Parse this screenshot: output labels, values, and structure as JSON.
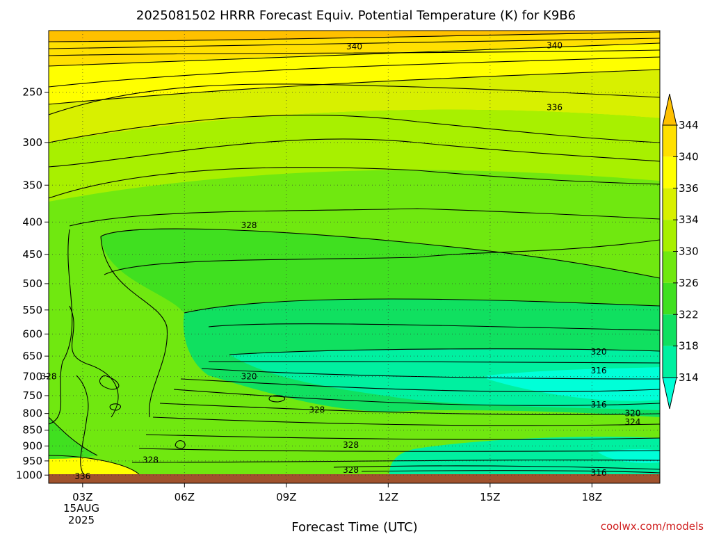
{
  "title": "2025081502 HRRR Forecast Equiv. Potential Temperature (K) for K9B6",
  "credit": "coolwx.com/models",
  "colors": {
    "ground": "#a0522d",
    "scale": [
      "#00ffd8",
      "#00f0a0",
      "#10e060",
      "#40e020",
      "#70e810",
      "#a8f000",
      "#d8f000",
      "#ffff00",
      "#ffe000",
      "#ffc000"
    ],
    "contour_line": "#000000",
    "credit_text": "#d02020"
  },
  "chart_data": {
    "type": "heatmap",
    "xlabel": "Forecast Time (UTC)",
    "ylabel": "",
    "x_range_hours": [
      2,
      20
    ],
    "x_ticks": [
      {
        "hour": 3,
        "label": "03Z"
      },
      {
        "hour": 6,
        "label": "06Z"
      },
      {
        "hour": 9,
        "label": "09Z"
      },
      {
        "hour": 12,
        "label": "12Z"
      },
      {
        "hour": 15,
        "label": "15Z"
      },
      {
        "hour": 18,
        "label": "18Z"
      }
    ],
    "date_label": [
      "15AUG",
      "2025"
    ],
    "y_scale": "log-pressure",
    "y_range_hpa": [
      1030,
      200
    ],
    "y_ticks": [
      250,
      300,
      350,
      400,
      450,
      500,
      550,
      600,
      650,
      700,
      750,
      800,
      850,
      900,
      950,
      1000
    ],
    "colorbar": {
      "levels": [
        344,
        340,
        336,
        334,
        330,
        326,
        322,
        318,
        314
      ],
      "extend": "both"
    },
    "contour_labels": [
      {
        "hour": 11.0,
        "p": 212,
        "label": "340"
      },
      {
        "hour": 16.9,
        "p": 211,
        "label": "340"
      },
      {
        "hour": 16.9,
        "p": 264,
        "label": "336"
      },
      {
        "hour": 7.9,
        "p": 405,
        "label": "328"
      },
      {
        "hour": 18.2,
        "p": 640,
        "label": "320"
      },
      {
        "hour": 18.2,
        "p": 685,
        "label": "316"
      },
      {
        "hour": 7.9,
        "p": 700,
        "label": "320"
      },
      {
        "hour": 2.0,
        "p": 700,
        "label": "328"
      },
      {
        "hour": 18.2,
        "p": 775,
        "label": "316"
      },
      {
        "hour": 9.9,
        "p": 790,
        "label": "328"
      },
      {
        "hour": 19.2,
        "p": 800,
        "label": "320"
      },
      {
        "hour": 19.2,
        "p": 825,
        "label": "324"
      },
      {
        "hour": 10.9,
        "p": 897,
        "label": "328"
      },
      {
        "hour": 5.0,
        "p": 947,
        "label": "328"
      },
      {
        "hour": 10.9,
        "p": 982,
        "label": "328"
      },
      {
        "hour": 18.2,
        "p": 992,
        "label": "316"
      },
      {
        "hour": 3.0,
        "p": 1005,
        "label": "336"
      }
    ]
  }
}
